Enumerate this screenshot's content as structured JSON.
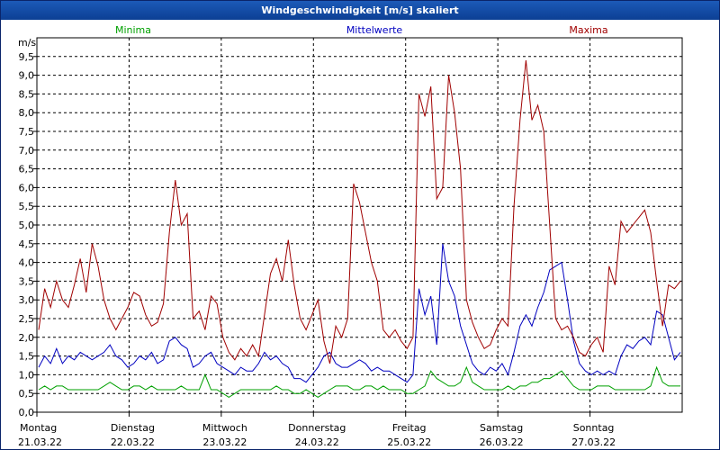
{
  "window": {
    "title": "Windgeschwindigkeit [m/s] skaliert"
  },
  "chart_data": {
    "type": "line",
    "title": "Windgeschwindigkeit [m/s] skaliert",
    "ylabel": "m/s",
    "ylim": [
      0,
      10
    ],
    "yticks": [
      "0,0",
      "0,5",
      "1,0",
      "1,5",
      "2,0",
      "2,5",
      "3,0",
      "3,5",
      "4,0",
      "4,5",
      "5,0",
      "5,5",
      "6,0",
      "6,5",
      "7,0",
      "7,5",
      "8,0",
      "8,5",
      "9,0",
      "9,5"
    ],
    "xlim": [
      0,
      7
    ],
    "days": [
      {
        "weekday": "Montag",
        "date": "21.03.22"
      },
      {
        "weekday": "Dienstag",
        "date": "22.03.22"
      },
      {
        "weekday": "Mittwoch",
        "date": "23.03.22"
      },
      {
        "weekday": "Donnerstag",
        "date": "24.03.22"
      },
      {
        "weekday": "Freitag",
        "date": "25.03.22"
      },
      {
        "weekday": "Samstag",
        "date": "26.03.22"
      },
      {
        "weekday": "Sonntag",
        "date": "27.03.22"
      }
    ],
    "grid": true,
    "series": [
      {
        "name": "Minima",
        "color": "#00a000",
        "values": [
          0.6,
          0.7,
          0.6,
          0.7,
          0.7,
          0.6,
          0.6,
          0.6,
          0.6,
          0.6,
          0.6,
          0.7,
          0.8,
          0.7,
          0.6,
          0.6,
          0.7,
          0.7,
          0.6,
          0.7,
          0.6,
          0.6,
          0.6,
          0.6,
          0.7,
          0.6,
          0.6,
          0.6,
          1.0,
          0.6,
          0.6,
          0.5,
          0.4,
          0.5,
          0.6,
          0.6,
          0.6,
          0.6,
          0.6,
          0.6,
          0.7,
          0.6,
          0.6,
          0.5,
          0.5,
          0.6,
          0.5,
          0.4,
          0.5,
          0.6,
          0.7,
          0.7,
          0.7,
          0.6,
          0.6,
          0.7,
          0.7,
          0.6,
          0.7,
          0.6,
          0.6,
          0.6,
          0.5,
          0.5,
          0.6,
          0.7,
          1.1,
          0.9,
          0.8,
          0.7,
          0.7,
          0.8,
          1.2,
          0.8,
          0.7,
          0.6,
          0.6,
          0.6,
          0.6,
          0.7,
          0.6,
          0.7,
          0.7,
          0.8,
          0.8,
          0.9,
          0.9,
          1.0,
          1.1,
          0.9,
          0.7,
          0.6,
          0.6,
          0.6,
          0.7,
          0.7,
          0.7,
          0.6,
          0.6,
          0.6,
          0.6,
          0.6,
          0.6,
          0.7,
          1.2,
          0.8,
          0.7,
          0.7,
          0.7
        ]
      },
      {
        "name": "Mittelwerte",
        "color": "#0000c0",
        "values": [
          1.2,
          1.5,
          1.3,
          1.7,
          1.3,
          1.5,
          1.4,
          1.6,
          1.5,
          1.4,
          1.5,
          1.6,
          1.8,
          1.5,
          1.4,
          1.2,
          1.3,
          1.5,
          1.4,
          1.6,
          1.3,
          1.4,
          1.9,
          2.0,
          1.8,
          1.7,
          1.2,
          1.3,
          1.5,
          1.6,
          1.3,
          1.2,
          1.1,
          1.0,
          1.2,
          1.1,
          1.1,
          1.3,
          1.6,
          1.4,
          1.5,
          1.3,
          1.2,
          0.9,
          0.9,
          0.8,
          1.0,
          1.2,
          1.5,
          1.6,
          1.3,
          1.2,
          1.2,
          1.3,
          1.4,
          1.3,
          1.1,
          1.2,
          1.1,
          1.1,
          1.0,
          0.9,
          0.8,
          1.0,
          3.3,
          2.6,
          3.1,
          1.8,
          4.5,
          3.5,
          3.1,
          2.3,
          1.8,
          1.3,
          1.1,
          1.0,
          1.2,
          1.1,
          1.3,
          1.0,
          1.6,
          2.3,
          2.6,
          2.3,
          2.8,
          3.2,
          3.8,
          3.9,
          4.0,
          3.0,
          1.9,
          1.3,
          1.1,
          1.0,
          1.1,
          1.0,
          1.1,
          1.0,
          1.5,
          1.8,
          1.7,
          1.9,
          2.0,
          1.8,
          2.7,
          2.6,
          2.0,
          1.4,
          1.6
        ]
      },
      {
        "name": "Maxima",
        "color": "#a00000",
        "values": [
          2.2,
          3.3,
          2.8,
          3.5,
          3.0,
          2.8,
          3.4,
          4.1,
          3.2,
          4.5,
          3.9,
          3.0,
          2.5,
          2.2,
          2.5,
          2.8,
          3.2,
          3.1,
          2.6,
          2.3,
          2.4,
          2.9,
          4.8,
          6.2,
          5.0,
          5.3,
          2.5,
          2.7,
          2.2,
          3.1,
          2.9,
          2.0,
          1.6,
          1.4,
          1.7,
          1.5,
          1.8,
          1.5,
          2.6,
          3.7,
          4.1,
          3.5,
          4.6,
          3.4,
          2.5,
          2.2,
          2.6,
          3.0,
          1.9,
          1.3,
          2.3,
          2.0,
          2.5,
          6.1,
          5.6,
          4.8,
          4.0,
          3.5,
          2.2,
          2.0,
          2.2,
          1.9,
          1.7,
          2.0,
          8.5,
          7.9,
          8.7,
          5.7,
          6.0,
          9.0,
          8.0,
          6.5,
          3.0,
          2.4,
          2.0,
          1.7,
          1.8,
          2.2,
          2.5,
          2.3,
          5.5,
          7.8,
          9.4,
          7.8,
          8.2,
          7.5,
          5.0,
          2.5,
          2.2,
          2.3,
          2.0,
          1.6,
          1.5,
          1.8,
          2.0,
          1.6,
          3.9,
          3.4,
          5.1,
          4.8,
          5.0,
          5.2,
          5.4,
          4.8,
          3.5,
          2.3,
          3.4,
          3.3,
          3.5
        ]
      }
    ]
  }
}
